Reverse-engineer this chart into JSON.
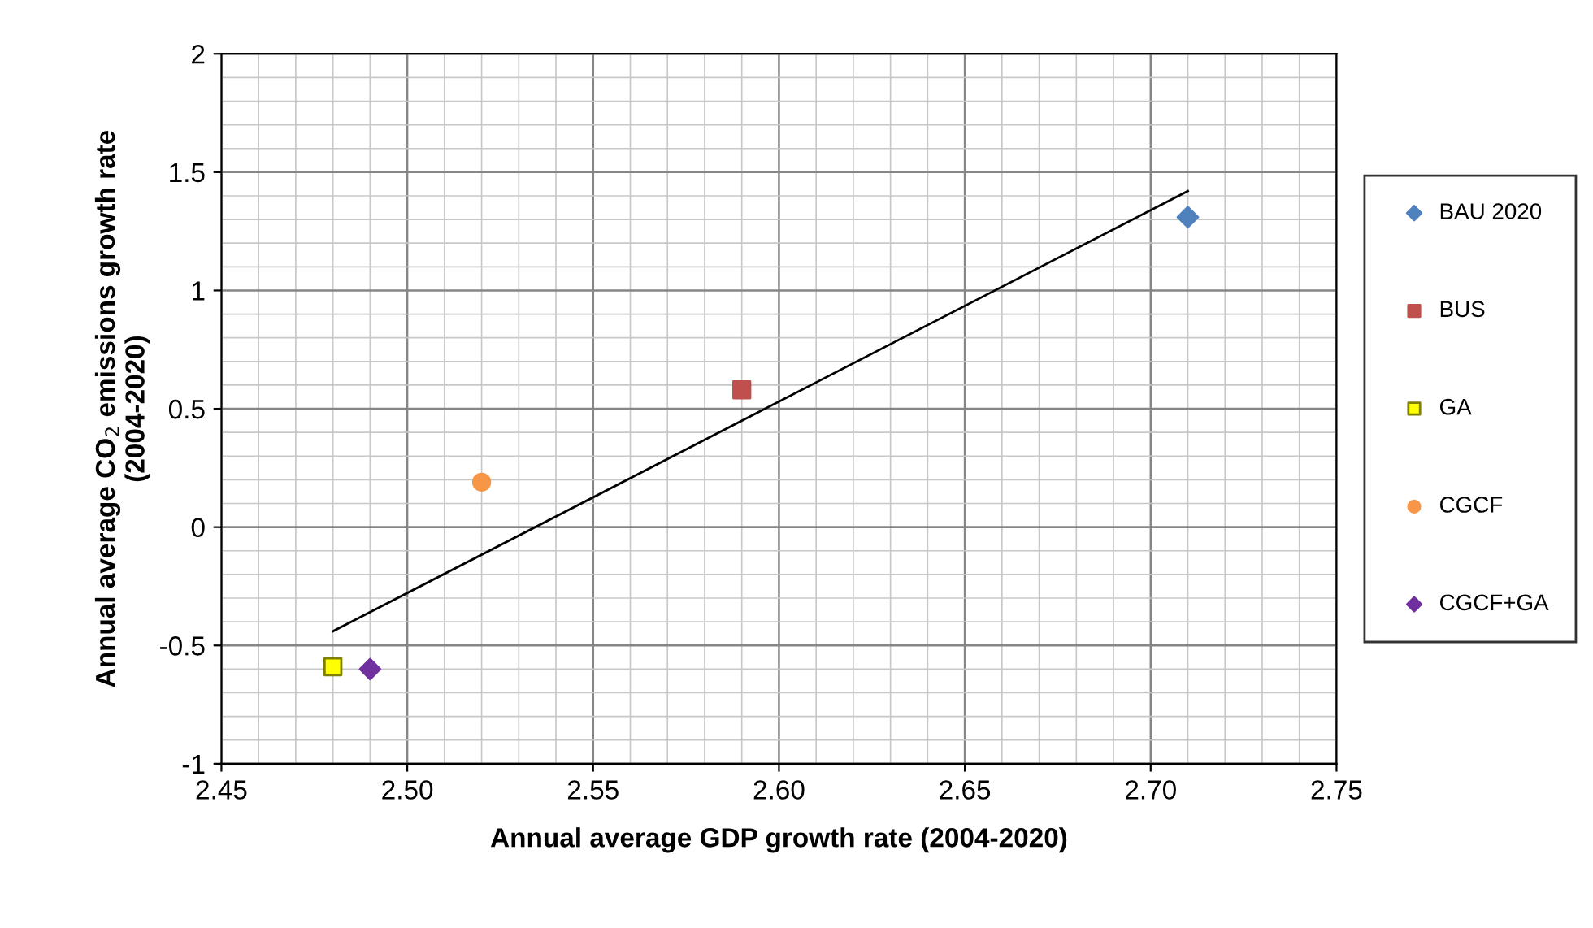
{
  "chart_data": {
    "type": "scatter",
    "xlabel": "Annual average GDP growth rate (2004-2020)",
    "ylabel": "Annual average CO$_{2}$ emissions growth rate\n(2004-2020)",
    "xlim": [
      2.45,
      2.75
    ],
    "xticks": [
      {
        "value": 2.45,
        "label": "2.45"
      },
      {
        "value": 2.5,
        "label": "2.50"
      },
      {
        "value": 2.55,
        "label": "2.55"
      },
      {
        "value": 2.6,
        "label": "2.60"
      },
      {
        "value": 2.65,
        "label": "2.65"
      },
      {
        "value": 2.7,
        "label": "2.70"
      },
      {
        "value": 2.75,
        "label": "2.75"
      }
    ],
    "ylim": [
      -1,
      2
    ],
    "yticks": [
      -1,
      -0.5,
      0,
      0.5,
      1,
      1.5,
      2
    ],
    "grid": true,
    "legend": "right",
    "series": [
      {
        "name": "BAU 2020",
        "color": "#4f81bd",
        "marker": "diamond",
        "x": [
          2.71
        ],
        "values": [
          1.31
        ]
      },
      {
        "name": "BUS",
        "color": "#c0504d",
        "marker": "square",
        "x": [
          2.59
        ],
        "values": [
          0.58
        ]
      },
      {
        "name": "GA",
        "color": "#ffff00",
        "marker": "square",
        "x": [
          2.48
        ],
        "values": [
          -0.59
        ]
      },
      {
        "name": "CGCF",
        "color": "#f79646",
        "marker": "circle",
        "x": [
          2.52
        ],
        "values": [
          0.19
        ]
      },
      {
        "name": "CGCF+GA",
        "color": "#7030a0",
        "marker": "diamond",
        "x": [
          2.49
        ],
        "values": [
          -0.6
        ]
      },
      {
        "type": "line",
        "color": "#000000",
        "marker": "none",
        "x": [
          2.48,
          2.71
        ],
        "values": [
          -0.44,
          1.42
        ]
      }
    ]
  }
}
